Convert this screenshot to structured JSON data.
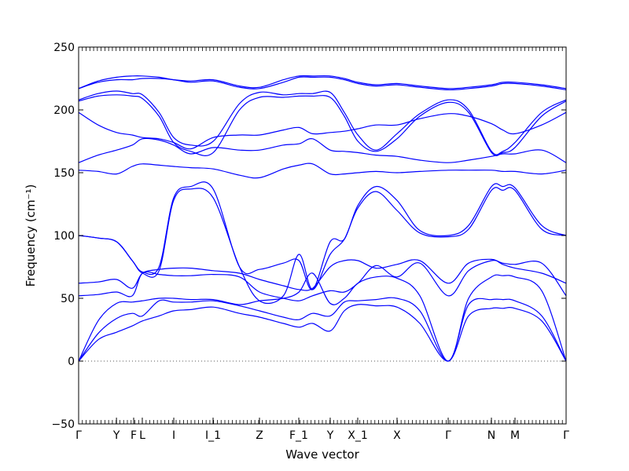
{
  "chart_data": {
    "type": "line",
    "title": "",
    "xlabel": "Wave vector",
    "ylabel": "Frequency (cm⁻¹)",
    "ylim": [
      -50,
      250
    ],
    "yticks": [
      -50,
      0,
      50,
      100,
      150,
      200,
      250
    ],
    "xticks": [
      {
        "label": "Γ",
        "x": 0
      },
      {
        "label": "Y",
        "x": 0.0776
      },
      {
        "label": "F",
        "x": 0.1129
      },
      {
        "label": "L",
        "x": 0.1306
      },
      {
        "label": "I",
        "x": 0.1952
      },
      {
        "label": "I_1",
        "x": 0.2758
      },
      {
        "label": "Z",
        "x": 0.371
      },
      {
        "label": "F_1",
        "x": 0.4516
      },
      {
        "label": "Y",
        "x": 0.5161
      },
      {
        "label": "X_1",
        "x": 0.5726
      },
      {
        "label": "X",
        "x": 0.6532
      },
      {
        "label": "Γ",
        "x": 0.7581
      },
      {
        "label": "N",
        "x": 0.8468
      },
      {
        "label": "M",
        "x": 0.8952
      },
      {
        "label": "Γ",
        "x": 1
      }
    ],
    "zero_line": 0,
    "colors": {
      "bands": "#0000ff",
      "axes": "#000000",
      "zero_line": "#555555"
    },
    "bands": [
      {
        "x": [
          0,
          0.04,
          0.078,
          0.11,
          0.131,
          0.165,
          0.195,
          0.23,
          0.276,
          0.33,
          0.371,
          0.42,
          0.452,
          0.48,
          0.516,
          0.545,
          0.573,
          0.61,
          0.653,
          0.7,
          0.758,
          0.8,
          0.847,
          0.87,
          0.895,
          0.95,
          1
        ],
        "y": [
          0,
          17,
          23,
          28,
          32,
          36,
          40,
          41,
          43,
          38,
          35,
          30,
          27,
          30,
          24,
          40,
          45,
          44,
          43,
          30,
          0,
          36,
          42,
          42,
          42,
          32,
          0
        ]
      },
      {
        "x": [
          0,
          0.04,
          0.078,
          0.11,
          0.131,
          0.165,
          0.195,
          0.23,
          0.276,
          0.33,
          0.371,
          0.42,
          0.452,
          0.48,
          0.516,
          0.545,
          0.573,
          0.61,
          0.653,
          0.7,
          0.758,
          0.8,
          0.847,
          0.87,
          0.895,
          0.95,
          1
        ],
        "y": [
          0,
          22,
          34,
          38,
          36,
          48,
          47,
          47,
          48,
          44,
          40,
          35,
          33,
          38,
          36,
          47,
          48,
          49,
          50,
          40,
          0,
          45,
          49,
          49,
          48,
          36,
          0
        ]
      },
      {
        "x": [
          0,
          0.04,
          0.078,
          0.11,
          0.131,
          0.165,
          0.195,
          0.23,
          0.276,
          0.33,
          0.371,
          0.42,
          0.452,
          0.48,
          0.516,
          0.545,
          0.573,
          0.61,
          0.653,
          0.7,
          0.758,
          0.8,
          0.847,
          0.87,
          0.895,
          0.95,
          1
        ],
        "y": [
          0,
          32,
          46,
          47,
          48,
          50,
          50,
          49,
          49,
          45,
          48,
          50,
          55,
          70,
          46,
          50,
          62,
          67,
          66,
          52,
          0,
          50,
          67,
          68,
          67,
          56,
          0
        ]
      },
      {
        "x": [
          0,
          0.04,
          0.078,
          0.11,
          0.131,
          0.165,
          0.195,
          0.23,
          0.276,
          0.33,
          0.371,
          0.42,
          0.452,
          0.48,
          0.516,
          0.545,
          0.573,
          0.61,
          0.653,
          0.7,
          0.758,
          0.8,
          0.847,
          0.87,
          0.895,
          0.95,
          1
        ],
        "y": [
          52,
          53,
          55,
          52,
          70,
          69,
          68,
          68,
          69,
          67,
          55,
          50,
          48,
          52,
          56,
          55,
          62,
          76,
          67,
          78,
          52,
          72,
          80,
          78,
          77,
          78,
          52
        ]
      },
      {
        "x": [
          0,
          0.04,
          0.078,
          0.11,
          0.131,
          0.165,
          0.195,
          0.23,
          0.276,
          0.33,
          0.371,
          0.42,
          0.452,
          0.48,
          0.516,
          0.545,
          0.573,
          0.61,
          0.653,
          0.7,
          0.758,
          0.8,
          0.847,
          0.87,
          0.895,
          0.95,
          1
        ],
        "y": [
          62,
          63,
          65,
          58,
          70,
          73,
          74,
          74,
          72,
          70,
          65,
          60,
          57,
          58,
          75,
          80,
          80,
          74,
          77,
          80,
          62,
          78,
          81,
          77,
          74,
          70,
          62
        ]
      },
      {
        "x": [
          0,
          0.04,
          0.078,
          0.11,
          0.131,
          0.165,
          0.195,
          0.23,
          0.276,
          0.33,
          0.371,
          0.42,
          0.452,
          0.48,
          0.516,
          0.545,
          0.573,
          0.61,
          0.653,
          0.7,
          0.758,
          0.8,
          0.847,
          0.87,
          0.895,
          0.95,
          1
        ],
        "y": [
          100,
          98,
          95,
          80,
          70,
          72,
          128,
          137,
          130,
          75,
          48,
          52,
          85,
          57,
          85,
          97,
          122,
          135,
          120,
          102,
          99,
          105,
          136,
          136,
          136,
          105,
          100
        ]
      },
      {
        "x": [
          0,
          0.04,
          0.078,
          0.11,
          0.131,
          0.165,
          0.195,
          0.23,
          0.276,
          0.33,
          0.371,
          0.42,
          0.452,
          0.48,
          0.516,
          0.545,
          0.573,
          0.61,
          0.653,
          0.7,
          0.758,
          0.8,
          0.847,
          0.87,
          0.895,
          0.95,
          1
        ],
        "y": [
          100,
          98,
          95,
          80,
          71,
          75,
          130,
          139,
          137,
          75,
          73,
          78,
          80,
          57,
          95,
          97,
          124,
          139,
          128,
          104,
          100,
          108,
          139,
          139,
          138,
          108,
          100
        ]
      },
      {
        "x": [
          0,
          0.04,
          0.078,
          0.11,
          0.131,
          0.165,
          0.195,
          0.23,
          0.276,
          0.33,
          0.371,
          0.42,
          0.452,
          0.48,
          0.516,
          0.545,
          0.573,
          0.61,
          0.653,
          0.7,
          0.758,
          0.8,
          0.847,
          0.87,
          0.895,
          0.95,
          1
        ],
        "y": [
          152,
          151,
          149,
          155,
          157,
          156,
          155,
          154,
          153,
          148,
          146,
          153,
          156,
          157,
          149,
          149,
          150,
          151,
          150,
          151,
          152,
          152,
          152,
          151,
          151,
          149,
          152
        ]
      },
      {
        "x": [
          0,
          0.04,
          0.078,
          0.11,
          0.131,
          0.165,
          0.195,
          0.23,
          0.276,
          0.33,
          0.371,
          0.42,
          0.452,
          0.48,
          0.516,
          0.545,
          0.573,
          0.61,
          0.653,
          0.7,
          0.758,
          0.8,
          0.847,
          0.87,
          0.895,
          0.95,
          1
        ],
        "y": [
          158,
          164,
          168,
          172,
          177,
          176,
          172,
          165,
          170,
          168,
          168,
          172,
          173,
          177,
          168,
          167,
          166,
          164,
          163,
          160,
          158,
          160,
          163,
          165,
          165,
          168,
          158
        ]
      },
      {
        "x": [
          0,
          0.04,
          0.078,
          0.11,
          0.131,
          0.165,
          0.195,
          0.23,
          0.276,
          0.33,
          0.371,
          0.42,
          0.452,
          0.48,
          0.516,
          0.545,
          0.573,
          0.61,
          0.653,
          0.7,
          0.758,
          0.8,
          0.847,
          0.87,
          0.895,
          0.95,
          1
        ],
        "y": [
          198,
          188,
          182,
          180,
          178,
          177,
          174,
          169,
          178,
          180,
          180,
          184,
          186,
          181,
          182,
          183,
          185,
          188,
          188,
          193,
          197,
          195,
          189,
          184,
          181,
          188,
          198
        ]
      },
      {
        "x": [
          0,
          0.04,
          0.078,
          0.11,
          0.131,
          0.165,
          0.195,
          0.23,
          0.276,
          0.33,
          0.371,
          0.42,
          0.452,
          0.48,
          0.516,
          0.545,
          0.573,
          0.61,
          0.653,
          0.7,
          0.758,
          0.8,
          0.847,
          0.87,
          0.895,
          0.95,
          1
        ],
        "y": [
          207,
          211,
          212,
          211,
          209,
          195,
          174,
          167,
          166,
          200,
          210,
          210,
          211,
          211,
          210,
          195,
          175,
          167,
          177,
          195,
          206,
          198,
          166,
          166,
          170,
          195,
          207
        ]
      },
      {
        "x": [
          0,
          0.04,
          0.078,
          0.11,
          0.131,
          0.165,
          0.195,
          0.23,
          0.276,
          0.33,
          0.371,
          0.42,
          0.452,
          0.48,
          0.516,
          0.545,
          0.573,
          0.61,
          0.653,
          0.7,
          0.758,
          0.8,
          0.847,
          0.87,
          0.895,
          0.95,
          1
        ],
        "y": [
          208,
          213,
          215,
          213,
          212,
          198,
          178,
          172,
          175,
          205,
          214,
          212,
          213,
          213,
          214,
          198,
          180,
          168,
          181,
          197,
          208,
          200,
          167,
          167,
          174,
          198,
          208
        ]
      },
      {
        "x": [
          0,
          0.04,
          0.078,
          0.11,
          0.131,
          0.165,
          0.195,
          0.23,
          0.276,
          0.33,
          0.371,
          0.42,
          0.452,
          0.48,
          0.516,
          0.545,
          0.573,
          0.61,
          0.653,
          0.7,
          0.758,
          0.8,
          0.847,
          0.87,
          0.895,
          0.95,
          1
        ],
        "y": [
          217,
          222,
          224,
          224,
          225,
          225,
          224,
          222,
          223,
          218,
          217,
          222,
          226,
          226,
          226,
          224,
          221,
          219,
          220,
          218,
          216,
          217,
          219,
          221,
          221,
          219,
          216
        ]
      },
      {
        "x": [
          0,
          0.04,
          0.078,
          0.11,
          0.131,
          0.165,
          0.195,
          0.23,
          0.276,
          0.33,
          0.371,
          0.42,
          0.452,
          0.48,
          0.516,
          0.545,
          0.573,
          0.61,
          0.653,
          0.7,
          0.758,
          0.8,
          0.847,
          0.87,
          0.895,
          0.95,
          1
        ],
        "y": [
          217,
          223,
          226,
          227,
          227,
          226,
          224,
          223,
          224,
          219,
          218,
          224,
          227,
          227,
          227,
          225,
          222,
          220,
          221,
          219,
          217,
          218,
          220,
          222,
          222,
          220,
          217
        ]
      }
    ]
  }
}
